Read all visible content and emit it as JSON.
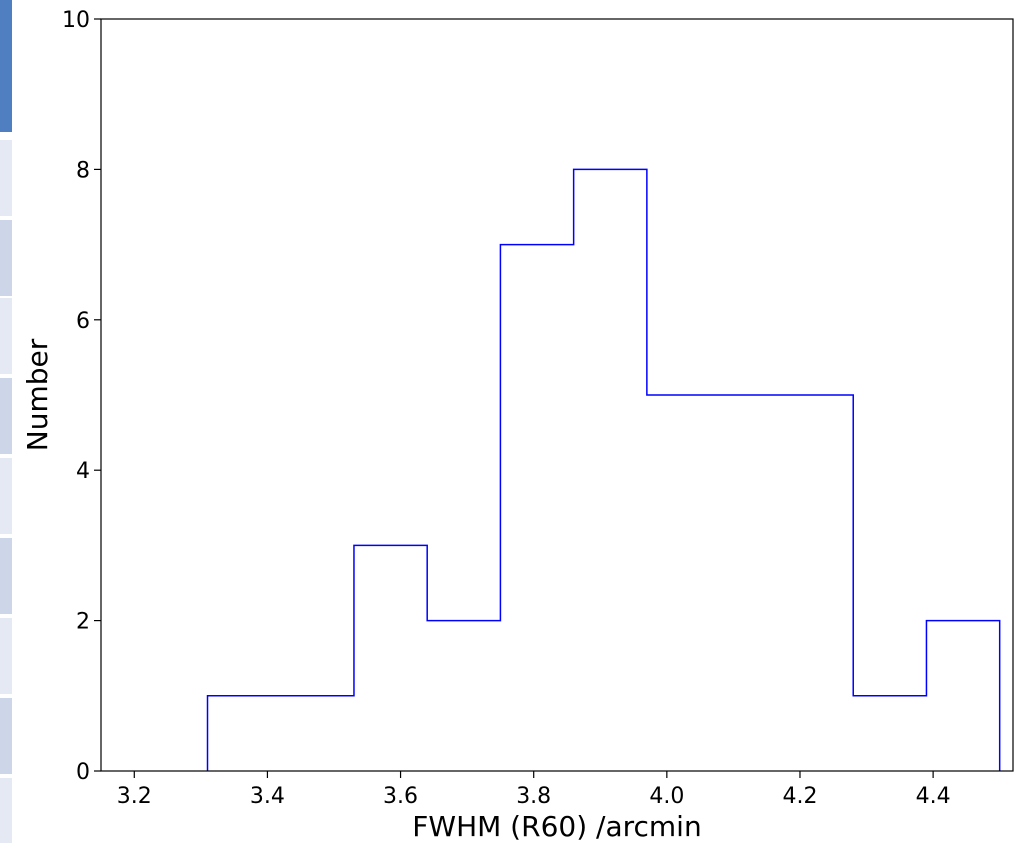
{
  "chart_data": {
    "type": "histogram",
    "xlabel": "FWHM (R60) /arcmin",
    "ylabel": "Number",
    "xlim": [
      3.15,
      4.52
    ],
    "ylim": [
      0,
      10
    ],
    "x_ticks": [
      3.2,
      3.4,
      3.6,
      3.8,
      4.0,
      4.2,
      4.4
    ],
    "x_tick_labels": [
      "3.2",
      "3.4",
      "3.6",
      "3.8",
      "4.0",
      "4.2",
      "4.4"
    ],
    "y_ticks": [
      0,
      2,
      4,
      6,
      8,
      10
    ],
    "y_tick_labels": [
      "0",
      "2",
      "4",
      "6",
      "8",
      "10"
    ],
    "bin_edges": [
      3.31,
      3.42,
      3.53,
      3.64,
      3.75,
      3.86,
      3.97,
      4.08,
      4.19,
      4.28,
      4.39,
      4.5
    ],
    "counts": [
      1,
      1,
      3,
      2,
      7,
      8,
      5,
      5,
      5,
      1,
      2
    ],
    "histtype": "step",
    "line_color": "#0000ff",
    "grid": false
  },
  "sidebar_strip": {
    "accent_color": "#4f7fc0",
    "segment_color": "#cdd6e8"
  }
}
